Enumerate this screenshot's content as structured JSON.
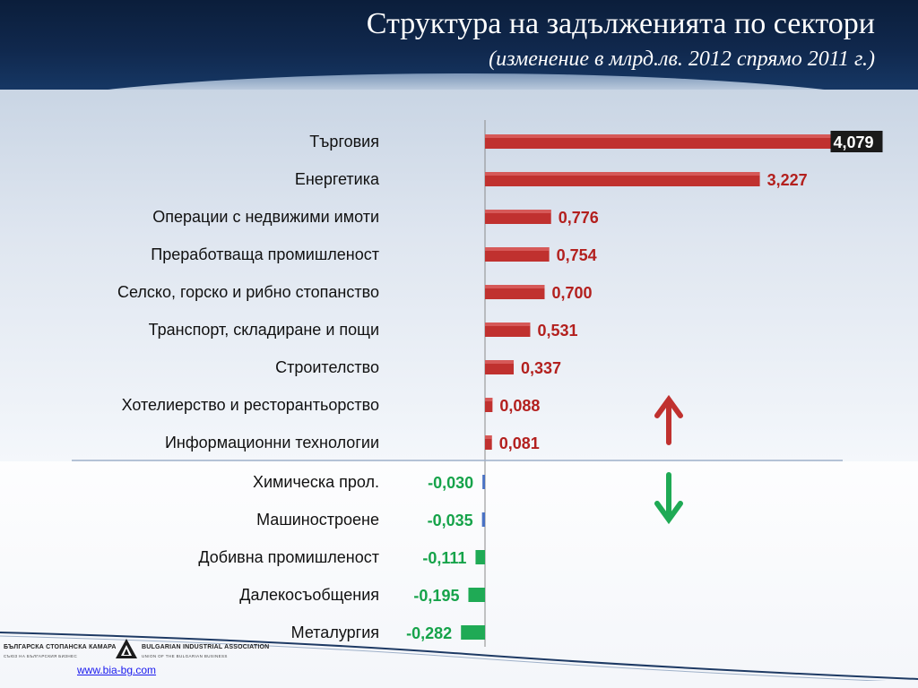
{
  "header": {
    "title": "Структура на задълженията по сектори",
    "subtitle": "(изменение в млрд.лв. 2012 спрямо 2011 г.)"
  },
  "chart_data": {
    "type": "bar",
    "orientation": "horizontal",
    "categories": [
      "Търговия",
      "Енергетика",
      "Операции с недвижими имоти",
      "Преработваща промишленост",
      "Селско, горско и рибно стопанство",
      "Транспорт, складиране и пощи",
      "Строителство",
      "Хотелиерство и ресторантьорство",
      "Информационни технологии",
      "Химическа прол.",
      "Машиностроене",
      "Добивна промишленост",
      "Далекосъобщения",
      "Металургия"
    ],
    "values": [
      4.079,
      3.227,
      0.776,
      0.754,
      0.7,
      0.531,
      0.337,
      0.088,
      0.081,
      -0.03,
      -0.035,
      -0.111,
      -0.195,
      -0.282
    ],
    "labels": [
      "4,079",
      "3,227",
      "0,776",
      "0,754",
      "0,700",
      "0,531",
      "0,337",
      "0,088",
      "0,081",
      "-0,030",
      "-0,035",
      "-0,111",
      "-0,195",
      "-0,282"
    ],
    "colors": {
      "positive_bar": "#c0312f",
      "positive_label": "#b3201e",
      "small_negative_bar": "#4a72c4",
      "negative_bar": "#1faa55",
      "negative_label": "#16a34a",
      "up_arrow": "#c0312f",
      "down_arrow": "#1faa55"
    },
    "markers": {
      "up_arrow_icon": "arrow-up-icon",
      "down_arrow_icon": "arrow-down-icon"
    }
  },
  "footer": {
    "logo_left": "БЪЛГАРСКА СТОПАНСКА КАМАРА",
    "logo_left_sub": "СЪЮЗ НА БЪЛГАРСКИЯ БИЗНЕС",
    "logo_right": "BULGARIAN INDUSTRIAL ASSOCIATION",
    "logo_right_sub": "UNION OF THE BULGARIAN BUSINESS",
    "url": "www.bia-bg.com"
  }
}
